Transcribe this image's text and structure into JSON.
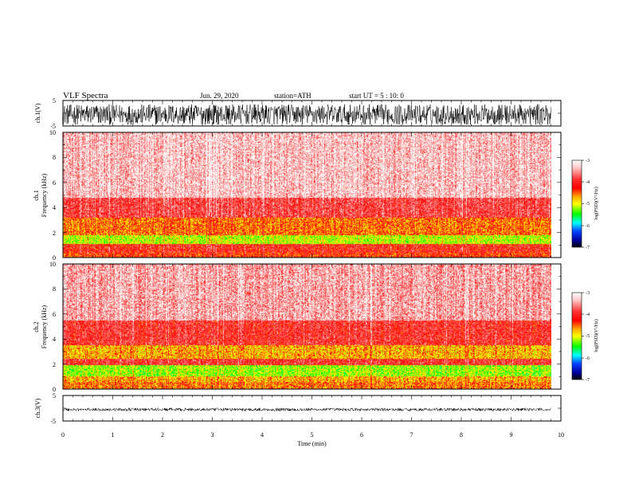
{
  "header": {
    "title": "VLF  Spectra",
    "date": "Jun. 29, 2020",
    "station": "station=ATH",
    "start_ut": "start  UT  =    5  : 10: 0"
  },
  "panels": {
    "ch1_wave": {
      "ylabel": "ch.1(V)",
      "ticks": [
        "5",
        "-5"
      ]
    },
    "ch1_spec": {
      "ylabel": "ch.1",
      "ylabel2": "Frequency  (kHz)",
      "ticks": [
        "10",
        "8",
        "6",
        "4",
        "2",
        "0"
      ]
    },
    "ch2_spec": {
      "ylabel": "ch.2",
      "ylabel2": "Frequency  (kHz)",
      "ticks": [
        "10",
        "8",
        "6",
        "4",
        "2",
        "0"
      ]
    },
    "ch3_wave": {
      "ylabel": "ch.3(V)",
      "ticks": [
        "5",
        "-5"
      ]
    }
  },
  "xaxis": {
    "label": "Time  (min)",
    "ticks": [
      "0",
      "1",
      "2",
      "3",
      "4",
      "5",
      "6",
      "7",
      "8",
      "9",
      "10"
    ]
  },
  "colorbars": [
    {
      "label": "log(PSD)(V²/Hz)",
      "ticks": [
        "-3",
        "-4",
        "-5",
        "-6",
        "-7"
      ]
    },
    {
      "label": "log(PSD)(V²/Hz)",
      "ticks": [
        "-3",
        "-4",
        "-5",
        "-6",
        "-7"
      ]
    }
  ],
  "colors": {
    "background": "#ffffff",
    "axis": "#000000",
    "spectrogram_high": "#ff0000",
    "spectrogram_mid": "#ffff00",
    "spectrogram_low": "#00ff00",
    "spectrogram_min": "#0000ff"
  },
  "chart_data": [
    {
      "type": "line",
      "ylabel": "ch.1(V)",
      "xlabel": "",
      "xlim": [
        0,
        10
      ],
      "ylim": [
        -5,
        5
      ],
      "data_end_min": 9.8,
      "series": [
        {
          "amplitude_range_V": [
            -4.5,
            3.5
          ]
        }
      ]
    },
    {
      "type": "heatmap",
      "ylabel": "ch.1 Frequency (kHz)",
      "xlim": [
        0,
        10
      ],
      "ylim": [
        0,
        10
      ],
      "data_end_min": 9.8,
      "zlabel": "log(PSD)(V²/Hz)",
      "zlim": [
        -7,
        -3
      ],
      "bands": [
        {
          "freq_kHz": [
            0,
            0.4
          ],
          "level": -4.2
        },
        {
          "freq_kHz": [
            0.4,
            1.1
          ],
          "level": -4.0
        },
        {
          "freq_kHz": [
            1.1,
            1.8
          ],
          "level": -5.0
        },
        {
          "freq_kHz": [
            1.8,
            3.2
          ],
          "level": -4.4
        },
        {
          "freq_kHz": [
            3.2,
            4.8
          ],
          "level": -3.8
        },
        {
          "freq_kHz": [
            4.8,
            10
          ],
          "level": -3.3
        }
      ]
    },
    {
      "type": "heatmap",
      "ylabel": "ch.2 Frequency (kHz)",
      "xlim": [
        0,
        10
      ],
      "ylim": [
        0,
        10
      ],
      "data_end_min": 9.8,
      "zlabel": "log(PSD)(V²/Hz)",
      "zlim": [
        -7,
        -3
      ],
      "bands": [
        {
          "freq_kHz": [
            0,
            0.6
          ],
          "level": -4.4
        },
        {
          "freq_kHz": [
            0.6,
            1.0
          ],
          "level": -4.6
        },
        {
          "freq_kHz": [
            1.0,
            1.9
          ],
          "level": -5.1
        },
        {
          "freq_kHz": [
            1.9,
            2.4
          ],
          "level": -3.9
        },
        {
          "freq_kHz": [
            2.4,
            3.5
          ],
          "level": -4.6
        },
        {
          "freq_kHz": [
            3.5,
            5.5
          ],
          "level": -3.9
        },
        {
          "freq_kHz": [
            5.5,
            10
          ],
          "level": -3.4
        }
      ]
    },
    {
      "type": "line",
      "ylabel": "ch.3(V)",
      "xlabel": "Time  (min)",
      "xlim": [
        0,
        10
      ],
      "ylim": [
        -5,
        5
      ],
      "data_end_min": 9.8,
      "series": [
        {
          "amplitude_range_V": [
            -0.6,
            0.6
          ],
          "offset_V": -0.5
        }
      ]
    }
  ]
}
